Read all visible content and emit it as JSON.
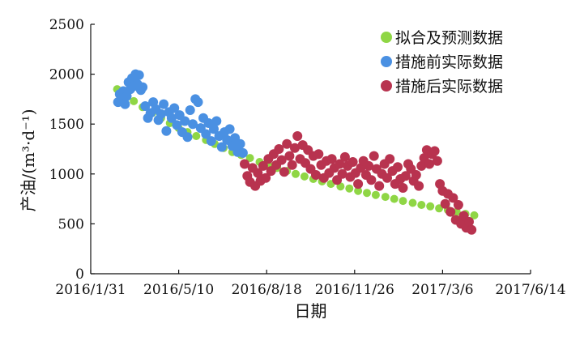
{
  "chart_data": {
    "type": "scatter",
    "title": "",
    "xlabel": "日期",
    "ylabel": "产油/(m³·d⁻¹)",
    "ylim": [
      0,
      2500
    ],
    "xlim": [
      "2016-01-31",
      "2017-06-14"
    ],
    "x_ticks": [
      "2016/1/31",
      "2016/5/10",
      "2016/8/18",
      "2016/11/26",
      "2017/3/6",
      "2017/6/14"
    ],
    "y_ticks": [
      0,
      500,
      1000,
      1500,
      2000,
      2500
    ],
    "legend_position": "top-right",
    "grid": false,
    "series": [
      {
        "name": "拟合及预测数据",
        "color": "#8fd645",
        "points": [
          [
            "2016-03-01",
            1850
          ],
          [
            "2016-03-10",
            1790
          ],
          [
            "2016-03-20",
            1730
          ],
          [
            "2016-03-30",
            1670
          ],
          [
            "2016-04-10",
            1610
          ],
          [
            "2016-04-20",
            1560
          ],
          [
            "2016-04-30",
            1510
          ],
          [
            "2016-05-10",
            1460
          ],
          [
            "2016-05-20",
            1420
          ],
          [
            "2016-05-30",
            1380
          ],
          [
            "2016-06-10",
            1340
          ],
          [
            "2016-06-20",
            1300
          ],
          [
            "2016-06-30",
            1260
          ],
          [
            "2016-07-10",
            1220
          ],
          [
            "2016-07-20",
            1190
          ],
          [
            "2016-07-30",
            1160
          ],
          [
            "2016-08-10",
            1120
          ],
          [
            "2016-08-20",
            1090
          ],
          [
            "2016-08-30",
            1060
          ],
          [
            "2016-09-10",
            1030
          ],
          [
            "2016-09-20",
            1000
          ],
          [
            "2016-09-30",
            975
          ],
          [
            "2016-10-10",
            950
          ],
          [
            "2016-10-20",
            925
          ],
          [
            "2016-10-30",
            900
          ],
          [
            "2016-11-10",
            875
          ],
          [
            "2016-11-20",
            855
          ],
          [
            "2016-11-30",
            830
          ],
          [
            "2016-12-10",
            810
          ],
          [
            "2016-12-20",
            790
          ],
          [
            "2016-12-31",
            770
          ],
          [
            "2017-01-10",
            750
          ],
          [
            "2017-01-20",
            730
          ],
          [
            "2017-01-31",
            710
          ],
          [
            "2017-02-10",
            690
          ],
          [
            "2017-02-20",
            675
          ],
          [
            "2017-03-02",
            655
          ],
          [
            "2017-03-12",
            640
          ],
          [
            "2017-03-22",
            620
          ],
          [
            "2017-04-01",
            600
          ],
          [
            "2017-04-11",
            585
          ]
        ]
      },
      {
        "name": "措施前实际数据",
        "color": "#4a90e2",
        "points": [
          [
            "2016-03-02",
            1720
          ],
          [
            "2016-03-04",
            1800
          ],
          [
            "2016-03-06",
            1760
          ],
          [
            "2016-03-08",
            1830
          ],
          [
            "2016-03-10",
            1700
          ],
          [
            "2016-03-12",
            1780
          ],
          [
            "2016-03-14",
            1920
          ],
          [
            "2016-03-16",
            1850
          ],
          [
            "2016-03-18",
            1960
          ],
          [
            "2016-03-20",
            1880
          ],
          [
            "2016-03-22",
            2000
          ],
          [
            "2016-03-24",
            1900
          ],
          [
            "2016-03-26",
            1990
          ],
          [
            "2016-03-28",
            1840
          ],
          [
            "2016-03-30",
            1870
          ],
          [
            "2016-04-02",
            1680
          ],
          [
            "2016-04-05",
            1560
          ],
          [
            "2016-04-08",
            1610
          ],
          [
            "2016-04-11",
            1720
          ],
          [
            "2016-04-14",
            1650
          ],
          [
            "2016-04-17",
            1540
          ],
          [
            "2016-04-20",
            1600
          ],
          [
            "2016-04-23",
            1700
          ],
          [
            "2016-04-26",
            1430
          ],
          [
            "2016-04-29",
            1620
          ],
          [
            "2016-05-02",
            1560
          ],
          [
            "2016-05-05",
            1660
          ],
          [
            "2016-05-08",
            1490
          ],
          [
            "2016-05-11",
            1590
          ],
          [
            "2016-05-14",
            1420
          ],
          [
            "2016-05-17",
            1530
          ],
          [
            "2016-05-20",
            1370
          ],
          [
            "2016-05-23",
            1640
          ],
          [
            "2016-05-26",
            1500
          ],
          [
            "2016-05-29",
            1750
          ],
          [
            "2016-06-01",
            1720
          ],
          [
            "2016-06-04",
            1460
          ],
          [
            "2016-06-07",
            1560
          ],
          [
            "2016-06-10",
            1400
          ],
          [
            "2016-06-13",
            1510
          ],
          [
            "2016-06-16",
            1330
          ],
          [
            "2016-06-19",
            1450
          ],
          [
            "2016-06-22",
            1530
          ],
          [
            "2016-06-25",
            1380
          ],
          [
            "2016-06-28",
            1270
          ],
          [
            "2016-07-01",
            1420
          ],
          [
            "2016-07-04",
            1340
          ],
          [
            "2016-07-07",
            1450
          ],
          [
            "2016-07-10",
            1280
          ],
          [
            "2016-07-13",
            1360
          ],
          [
            "2016-07-16",
            1220
          ],
          [
            "2016-07-19",
            1300
          ],
          [
            "2016-07-22",
            1210
          ]
        ]
      },
      {
        "name": "措施后实际数据",
        "color": "#b8334f",
        "points": [
          [
            "2016-07-24",
            1100
          ],
          [
            "2016-07-27",
            980
          ],
          [
            "2016-07-30",
            920
          ],
          [
            "2016-08-02",
            1060
          ],
          [
            "2016-08-05",
            880
          ],
          [
            "2016-08-08",
            1010
          ],
          [
            "2016-08-11",
            930
          ],
          [
            "2016-08-14",
            1080
          ],
          [
            "2016-08-17",
            960
          ],
          [
            "2016-08-20",
            1150
          ],
          [
            "2016-08-23",
            1030
          ],
          [
            "2016-08-26",
            1200
          ],
          [
            "2016-08-29",
            1090
          ],
          [
            "2016-09-01",
            1250
          ],
          [
            "2016-09-04",
            1140
          ],
          [
            "2016-09-07",
            1020
          ],
          [
            "2016-09-10",
            1300
          ],
          [
            "2016-09-13",
            1180
          ],
          [
            "2016-09-16",
            1090
          ],
          [
            "2016-09-19",
            1260
          ],
          [
            "2016-09-22",
            1380
          ],
          [
            "2016-09-25",
            1150
          ],
          [
            "2016-09-28",
            1290
          ],
          [
            "2016-10-01",
            1110
          ],
          [
            "2016-10-04",
            1240
          ],
          [
            "2016-10-07",
            1050
          ],
          [
            "2016-10-10",
            1180
          ],
          [
            "2016-10-13",
            990
          ],
          [
            "2016-10-16",
            1200
          ],
          [
            "2016-10-19",
            1090
          ],
          [
            "2016-10-22",
            960
          ],
          [
            "2016-10-25",
            1130
          ],
          [
            "2016-10-28",
            1010
          ],
          [
            "2016-10-31",
            1150
          ],
          [
            "2016-11-03",
            1060
          ],
          [
            "2016-11-06",
            940
          ],
          [
            "2016-11-09",
            1100
          ],
          [
            "2016-11-12",
            1000
          ],
          [
            "2016-11-15",
            1170
          ],
          [
            "2016-11-18",
            1080
          ],
          [
            "2016-11-21",
            970
          ],
          [
            "2016-11-24",
            1120
          ],
          [
            "2016-11-27",
            1010
          ],
          [
            "2016-11-30",
            900
          ],
          [
            "2016-12-03",
            1060
          ],
          [
            "2016-12-06",
            1130
          ],
          [
            "2016-12-09",
            990
          ],
          [
            "2016-12-12",
            1080
          ],
          [
            "2016-12-15",
            940
          ],
          [
            "2016-12-18",
            1180
          ],
          [
            "2016-12-21",
            1050
          ],
          [
            "2016-12-24",
            880
          ],
          [
            "2016-12-27",
            1000
          ],
          [
            "2016-12-30",
            1100
          ],
          [
            "2017-01-02",
            960
          ],
          [
            "2017-01-05",
            1150
          ],
          [
            "2017-01-08",
            1030
          ],
          [
            "2017-01-11",
            900
          ],
          [
            "2017-01-14",
            1070
          ],
          [
            "2017-01-17",
            950
          ],
          [
            "2017-01-20",
            860
          ],
          [
            "2017-01-23",
            980
          ],
          [
            "2017-01-26",
            1100
          ],
          [
            "2017-01-29",
            1050
          ],
          [
            "2017-02-01",
            930
          ],
          [
            "2017-02-04",
            990
          ],
          [
            "2017-02-07",
            880
          ],
          [
            "2017-02-10",
            1080
          ],
          [
            "2017-02-13",
            1160
          ],
          [
            "2017-02-16",
            1240
          ],
          [
            "2017-02-19",
            1100
          ],
          [
            "2017-02-22",
            1200
          ],
          [
            "2017-02-25",
            1230
          ],
          [
            "2017-02-28",
            1130
          ],
          [
            "2017-03-03",
            900
          ],
          [
            "2017-03-06",
            830
          ],
          [
            "2017-03-09",
            700
          ],
          [
            "2017-03-12",
            800
          ],
          [
            "2017-03-15",
            620
          ],
          [
            "2017-03-18",
            760
          ],
          [
            "2017-03-21",
            540
          ],
          [
            "2017-03-24",
            690
          ],
          [
            "2017-03-27",
            500
          ],
          [
            "2017-03-30",
            580
          ],
          [
            "2017-04-02",
            460
          ],
          [
            "2017-04-05",
            520
          ],
          [
            "2017-04-08",
            440
          ]
        ]
      }
    ]
  }
}
